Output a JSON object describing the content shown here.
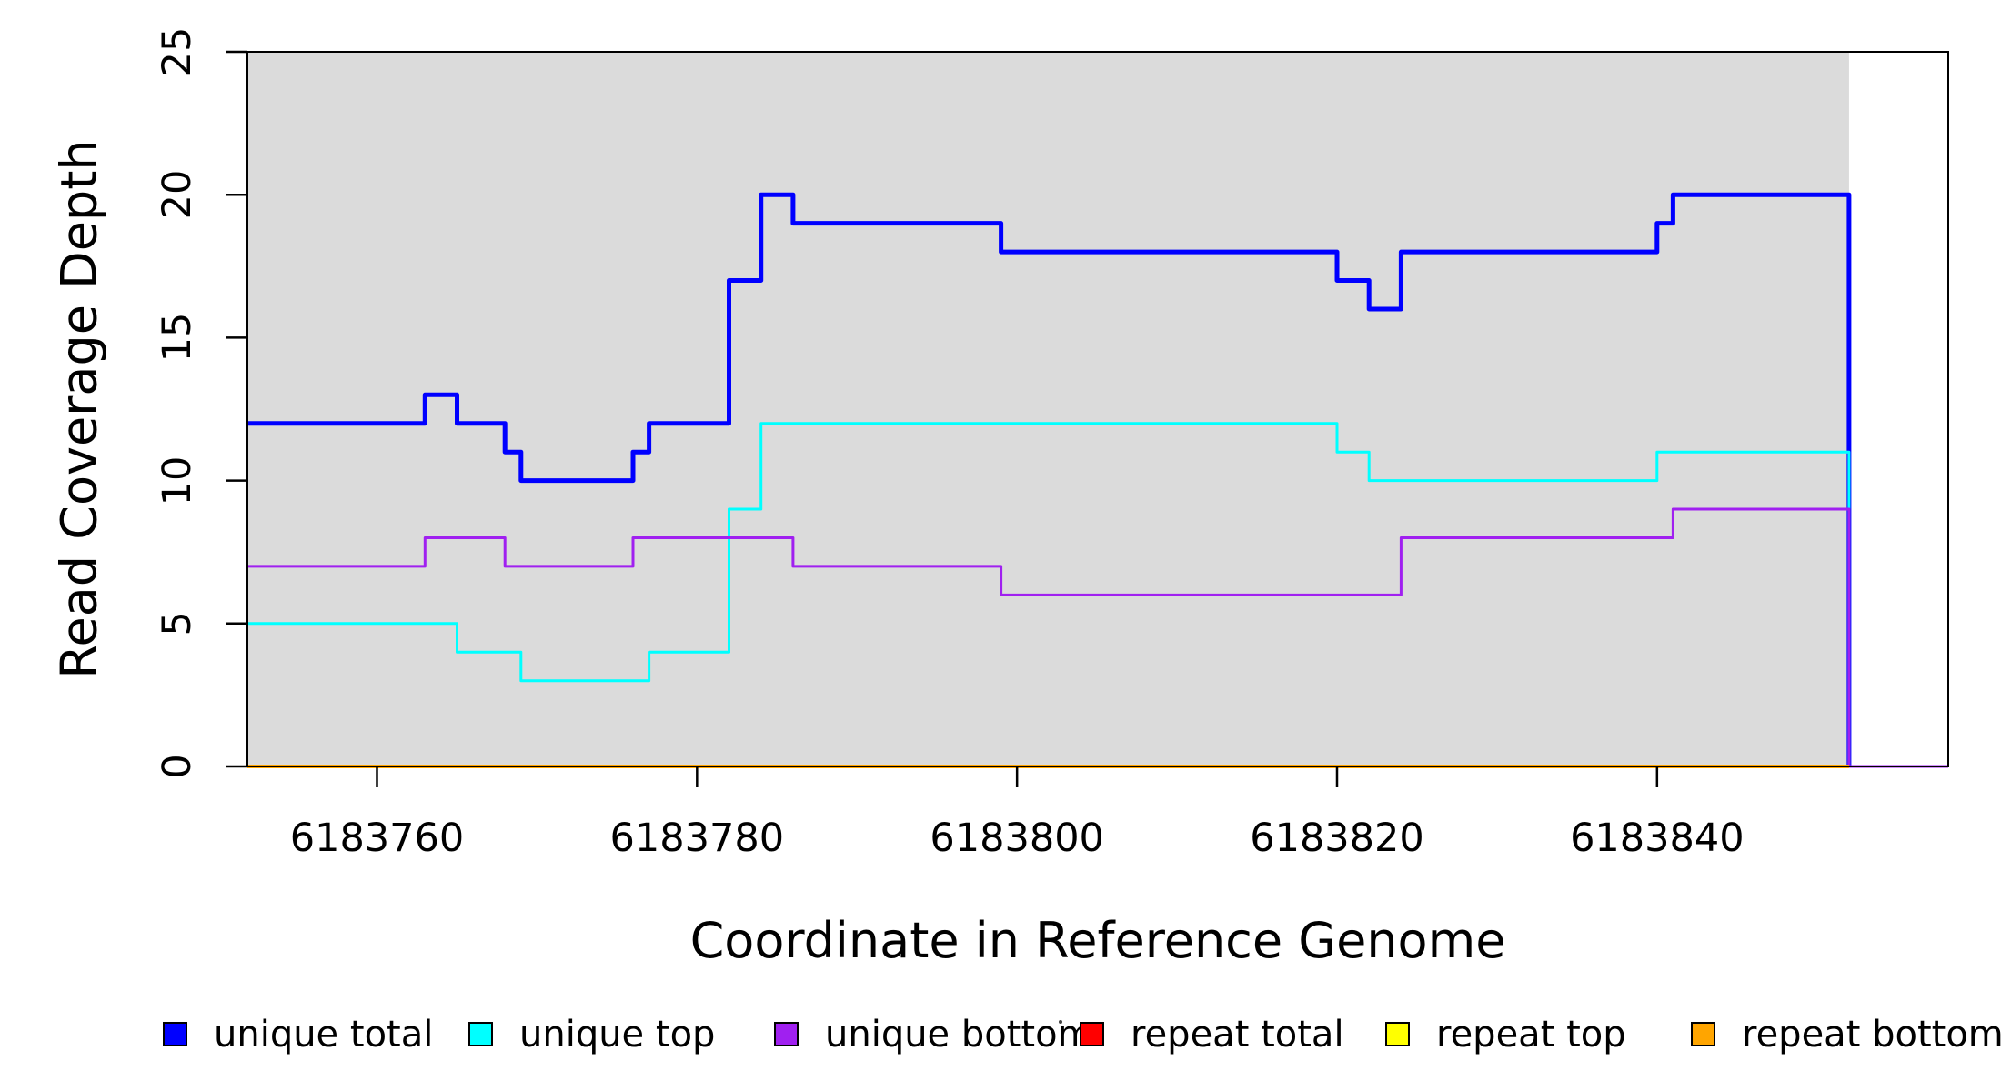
{
  "chart_data": {
    "type": "line",
    "subtype": "step",
    "title": "",
    "xlabel": "Coordinate in Reference Genome",
    "ylabel": "Read Coverage Depth",
    "xlim": [
      6183751.9,
      6183858.2
    ],
    "ylim": [
      0,
      25
    ],
    "x_ticks": [
      6183760,
      6183780,
      6183800,
      6183820,
      6183840
    ],
    "y_ticks": [
      0,
      5,
      10,
      15,
      20,
      25
    ],
    "grid": false,
    "plot_background_color": "#DBDBDB",
    "plot_background_span": [
      6183751.9,
      6183852
    ],
    "legend_position": "bottom",
    "series": [
      {
        "name": "unique total",
        "color": "#0000FF",
        "line_width": 5,
        "end": 6183852,
        "steps": [
          [
            6183751.9,
            12
          ],
          [
            6183763,
            13
          ],
          [
            6183765,
            12
          ],
          [
            6183768,
            11
          ],
          [
            6183769,
            10
          ],
          [
            6183776,
            11
          ],
          [
            6183777,
            12
          ],
          [
            6183782,
            17
          ],
          [
            6183784,
            20
          ],
          [
            6183786,
            19
          ],
          [
            6183799,
            18
          ],
          [
            6183820,
            17
          ],
          [
            6183822,
            16
          ],
          [
            6183824,
            18
          ],
          [
            6183840,
            19
          ],
          [
            6183841,
            20
          ],
          [
            6183852,
            0
          ]
        ]
      },
      {
        "name": "unique top",
        "color": "#00FFFF",
        "line_width": 3,
        "end": 6183852,
        "steps": [
          [
            6183751.9,
            5
          ],
          [
            6183765,
            4
          ],
          [
            6183769,
            3
          ],
          [
            6183777,
            4
          ],
          [
            6183782,
            9
          ],
          [
            6183784,
            12
          ],
          [
            6183820,
            11
          ],
          [
            6183822,
            10
          ],
          [
            6183840,
            11
          ],
          [
            6183852,
            0
          ]
        ]
      },
      {
        "name": "unique bottom",
        "color": "#A020F0",
        "line_width": 3,
        "end": 6183858.2,
        "steps": [
          [
            6183751.9,
            7
          ],
          [
            6183763,
            8
          ],
          [
            6183768,
            7
          ],
          [
            6183776,
            8
          ],
          [
            6183786,
            7
          ],
          [
            6183799,
            6
          ],
          [
            6183824,
            8
          ],
          [
            6183841,
            9
          ],
          [
            6183852,
            0
          ]
        ]
      },
      {
        "name": "repeat total",
        "color": "#FF0000",
        "line_width": 3,
        "end": 6183852,
        "steps": [
          [
            6183751.9,
            0
          ]
        ]
      },
      {
        "name": "repeat top",
        "color": "#FFFF00",
        "line_width": 3,
        "end": 6183852,
        "steps": [
          [
            6183751.9,
            0
          ]
        ]
      },
      {
        "name": "repeat bottom",
        "color": "#FFA500",
        "line_width": 4,
        "end": 6183852,
        "steps": [
          [
            6183751.9,
            0
          ]
        ]
      }
    ],
    "legend": [
      {
        "label": "unique total",
        "color": "#0000FF"
      },
      {
        "label": "unique top",
        "color": "#00FFFF"
      },
      {
        "label": "unique bottom",
        "color": "#A020F0"
      },
      {
        "label": "repeat total",
        "color": "#FF0000"
      },
      {
        "label": "repeat top",
        "color": "#FFFF00"
      },
      {
        "label": "repeat bottom",
        "color": "#FFA500"
      }
    ]
  }
}
